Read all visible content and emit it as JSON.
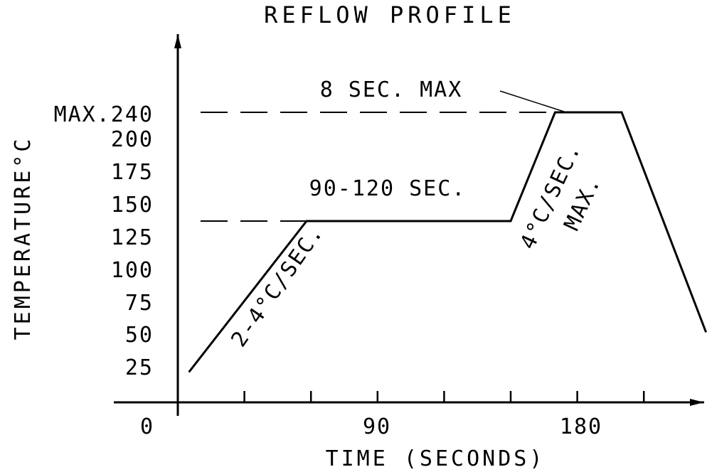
{
  "chart_data": {
    "type": "line",
    "title": "REFLOW PROFILE",
    "xlabel": "TIME (SECONDS)",
    "ylabel": "TEMPERATURE°C",
    "x_tick_labels": [
      "0",
      "90",
      "180"
    ],
    "x_minor_ticks": [
      30,
      60,
      90,
      120,
      150,
      180,
      210
    ],
    "y_tick_labels": [
      "25",
      "50",
      "75",
      "100",
      "125",
      "150",
      "175",
      "200",
      "MAX.240"
    ],
    "xlim": [
      0,
      240
    ],
    "ylim": [
      0,
      240
    ],
    "series": [
      {
        "x": [
          5,
          58,
          150,
          170,
          187,
          200,
          238
        ],
        "y": [
          25,
          150,
          150,
          240,
          240,
          240,
          58
        ]
      }
    ],
    "reference_lines": [
      {
        "y": 240,
        "style": "dashed"
      },
      {
        "y": 150,
        "style": "dashed"
      }
    ],
    "annotations": [
      {
        "text": "8 SEC. MAX"
      },
      {
        "text": "90-120 SEC."
      },
      {
        "text": "2-4°C/SEC."
      },
      {
        "text": "4°C/SEC."
      },
      {
        "text": "MAX."
      }
    ],
    "grid": false,
    "legend": "none"
  }
}
